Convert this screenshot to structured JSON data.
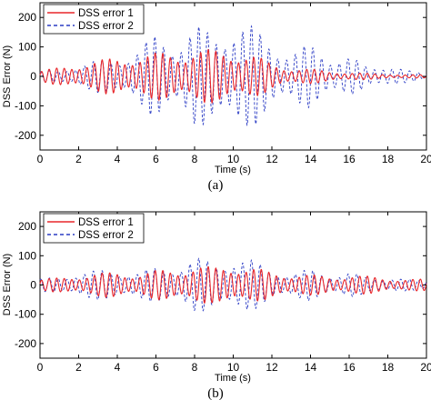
{
  "chart_data": [
    {
      "type": "line",
      "panel_caption": "(a)",
      "xlabel": "Time (s)",
      "ylabel": "DSS Error (N)",
      "xlim": [
        0,
        20
      ],
      "ylim": [
        -250,
        250
      ],
      "xticks": [
        0,
        2,
        4,
        6,
        8,
        10,
        12,
        14,
        16,
        18,
        20
      ],
      "yticks": [
        -200,
        -100,
        0,
        100,
        200
      ],
      "legend_position": "top-left",
      "series": [
        {
          "name": "DSS error 1",
          "color": "#e8262a",
          "style": "solid",
          "envelope_t": [
            0,
            1,
            2,
            3,
            4,
            5,
            6,
            7,
            8,
            9,
            10,
            11,
            12,
            13,
            14,
            15,
            16,
            17,
            18,
            19,
            20
          ],
          "envelope_amp": [
            20,
            30,
            45,
            55,
            65,
            75,
            80,
            85,
            95,
            90,
            95,
            75,
            45,
            30,
            25,
            18,
            14,
            10,
            8,
            6,
            5
          ]
        },
        {
          "name": "DSS error 2",
          "color": "#2a3bc4",
          "style": "dashed",
          "envelope_t": [
            0,
            1,
            2,
            3,
            4,
            5,
            6,
            7,
            8,
            9,
            10,
            11,
            12,
            13,
            14,
            15,
            16,
            17,
            18,
            19,
            20
          ],
          "envelope_amp": [
            15,
            25,
            40,
            55,
            65,
            90,
            145,
            130,
            175,
            150,
            200,
            170,
            130,
            85,
            110,
            75,
            70,
            30,
            45,
            20,
            10
          ]
        }
      ]
    },
    {
      "type": "line",
      "panel_caption": "(b)",
      "xlabel": "Time (s)",
      "ylabel": "DSS Error (N)",
      "xlim": [
        0,
        20
      ],
      "ylim": [
        -250,
        250
      ],
      "xticks": [
        0,
        2,
        4,
        6,
        8,
        10,
        12,
        14,
        16,
        18,
        20
      ],
      "yticks": [
        -200,
        -100,
        0,
        100,
        200
      ],
      "legend_position": "top-left",
      "series": [
        {
          "name": "DSS error 1",
          "color": "#e8262a",
          "style": "solid",
          "envelope_t": [
            0,
            1,
            2,
            3,
            4,
            5,
            6,
            7,
            8,
            9,
            10,
            11,
            12,
            13,
            14,
            15,
            16,
            17,
            18,
            19,
            20
          ],
          "envelope_amp": [
            20,
            25,
            35,
            40,
            45,
            40,
            50,
            55,
            70,
            60,
            75,
            60,
            45,
            40,
            35,
            30,
            35,
            30,
            25,
            20,
            20
          ]
        },
        {
          "name": "DSS error 2",
          "color": "#2a3bc4",
          "style": "dashed",
          "envelope_t": [
            0,
            1,
            2,
            3,
            4,
            5,
            6,
            7,
            8,
            9,
            10,
            11,
            12,
            13,
            14,
            15,
            16,
            17,
            18,
            19,
            20
          ],
          "envelope_amp": [
            20,
            30,
            45,
            50,
            55,
            45,
            60,
            70,
            95,
            80,
            100,
            85,
            60,
            40,
            55,
            40,
            45,
            25,
            30,
            20,
            15
          ]
        }
      ]
    }
  ]
}
